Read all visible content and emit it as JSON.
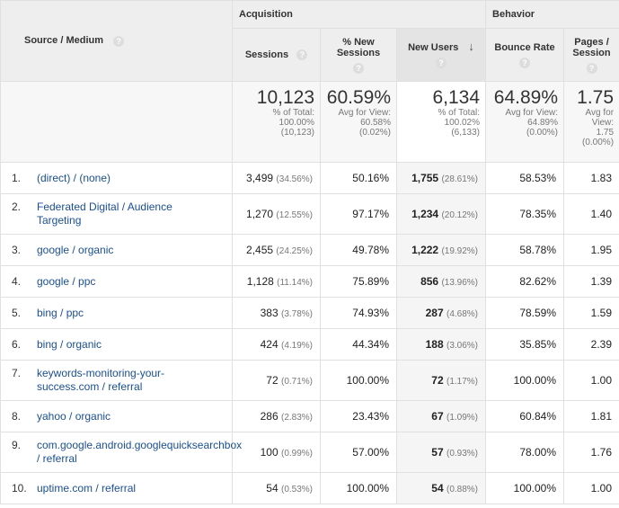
{
  "groups": {
    "acquisition": "Acquisition",
    "behavior": "Behavior"
  },
  "headers": {
    "source": "Source / Medium",
    "sessions": "Sessions",
    "new_sessions": "% New Sessions",
    "new_users": "New Users",
    "bounce_rate": "Bounce Rate",
    "pages_session": "Pages / Session",
    "help": "?",
    "sort_arrow": "↓"
  },
  "totals": {
    "sessions": {
      "value": "10,123",
      "line1": "% of Total:",
      "line2": "100.00%",
      "line3": "(10,123)"
    },
    "new_sessions": {
      "value": "60.59%",
      "line1": "Avg for View:",
      "line2": "60.58%",
      "line3": "(0.02%)"
    },
    "new_users": {
      "value": "6,134",
      "line1": "% of Total:",
      "line2": "100.02%",
      "line3": "(6,133)"
    },
    "bounce_rate": {
      "value": "64.89%",
      "line1": "Avg for View:",
      "line2": "64.89%",
      "line3": "(0.00%)"
    },
    "pages_session": {
      "value": "1.75",
      "line1": "Avg for",
      "line2": "View:",
      "line3": "1.75",
      "line4": "(0.00%)"
    }
  },
  "rows": [
    {
      "idx": "1.",
      "source": "(direct) / (none)",
      "sessions": "3,499",
      "sessions_pct": "(34.56%)",
      "new_sessions": "50.16%",
      "new_users": "1,755",
      "new_users_pct": "(28.61%)",
      "bounce_rate": "58.53%",
      "pages": "1.83"
    },
    {
      "idx": "2.",
      "source": "Federated Digital / Audience Targeting",
      "sessions": "1,270",
      "sessions_pct": "(12.55%)",
      "new_sessions": "97.17%",
      "new_users": "1,234",
      "new_users_pct": "(20.12%)",
      "bounce_rate": "78.35%",
      "pages": "1.40"
    },
    {
      "idx": "3.",
      "source": "google / organic",
      "sessions": "2,455",
      "sessions_pct": "(24.25%)",
      "new_sessions": "49.78%",
      "new_users": "1,222",
      "new_users_pct": "(19.92%)",
      "bounce_rate": "58.78%",
      "pages": "1.95"
    },
    {
      "idx": "4.",
      "source": "google / ppc",
      "sessions": "1,128",
      "sessions_pct": "(11.14%)",
      "new_sessions": "75.89%",
      "new_users": "856",
      "new_users_pct": "(13.96%)",
      "bounce_rate": "82.62%",
      "pages": "1.39"
    },
    {
      "idx": "5.",
      "source": "bing / ppc",
      "sessions": "383",
      "sessions_pct": "(3.78%)",
      "new_sessions": "74.93%",
      "new_users": "287",
      "new_users_pct": "(4.68%)",
      "bounce_rate": "78.59%",
      "pages": "1.59"
    },
    {
      "idx": "6.",
      "source": "bing / organic",
      "sessions": "424",
      "sessions_pct": "(4.19%)",
      "new_sessions": "44.34%",
      "new_users": "188",
      "new_users_pct": "(3.06%)",
      "bounce_rate": "35.85%",
      "pages": "2.39"
    },
    {
      "idx": "7.",
      "source": "keywords-monitoring-your-success.com / referral",
      "sessions": "72",
      "sessions_pct": "(0.71%)",
      "new_sessions": "100.00%",
      "new_users": "72",
      "new_users_pct": "(1.17%)",
      "bounce_rate": "100.00%",
      "pages": "1.00"
    },
    {
      "idx": "8.",
      "source": "yahoo / organic",
      "sessions": "286",
      "sessions_pct": "(2.83%)",
      "new_sessions": "23.43%",
      "new_users": "67",
      "new_users_pct": "(1.09%)",
      "bounce_rate": "60.84%",
      "pages": "1.81"
    },
    {
      "idx": "9.",
      "source": "com.google.android.googlequicksearchbox / referral",
      "sessions": "100",
      "sessions_pct": "(0.99%)",
      "new_sessions": "57.00%",
      "new_users": "57",
      "new_users_pct": "(0.93%)",
      "bounce_rate": "78.00%",
      "pages": "1.76"
    },
    {
      "idx": "10.",
      "source": "uptime.com / referral",
      "sessions": "54",
      "sessions_pct": "(0.53%)",
      "new_sessions": "100.00%",
      "new_users": "54",
      "new_users_pct": "(0.88%)",
      "bounce_rate": "100.00%",
      "pages": "1.00"
    }
  ]
}
